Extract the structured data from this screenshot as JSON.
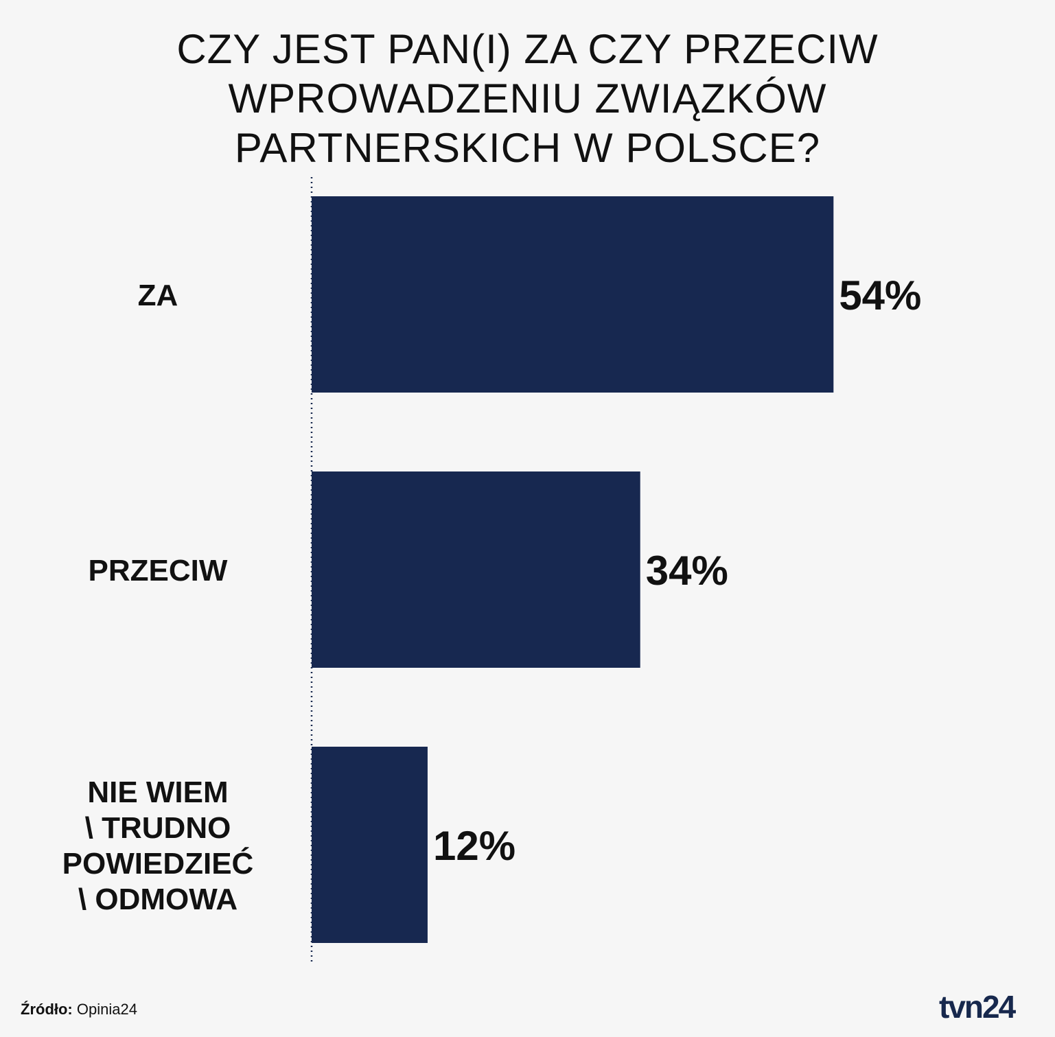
{
  "title_lines": [
    "CZY JEST PAN(I) ZA CZY PRZECIW",
    "WPROWADZENIU ZWIĄZKÓW",
    "PARTNERSKICH W POLSCE?"
  ],
  "chart_data": {
    "type": "bar",
    "orientation": "horizontal",
    "title": "CZY JEST PAN(I) ZA CZY PRZECIW WPROWADZENIU ZWIĄZKÓW PARTNERSKICH W POLSCE?",
    "categories": [
      "ZA",
      "PRZECIW",
      "NIE WIEM \\ TRUDNO POWIEDZIEĆ \\ ODMOWA"
    ],
    "category_lines": [
      [
        "ZA"
      ],
      [
        "PRZECIW"
      ],
      [
        "NIE WIEM",
        "\\ TRUDNO",
        "POWIEDZIEĆ",
        "\\ ODMOWA"
      ]
    ],
    "values": [
      54,
      34,
      12
    ],
    "value_labels": [
      "54%",
      "34%",
      "12%"
    ],
    "unit": "%",
    "xlim": [
      0,
      100
    ],
    "bar_color": "#172850",
    "baseline_style": "dotted",
    "grid": false,
    "legend": "none"
  },
  "footer": {
    "source_key": "Źródło:",
    "source_value": " Opinia24"
  },
  "logo": {
    "text": "tvn24",
    "color": "#17284d"
  },
  "colors": {
    "background": "#f6f6f6",
    "text": "#111111",
    "bar": "#172850"
  }
}
